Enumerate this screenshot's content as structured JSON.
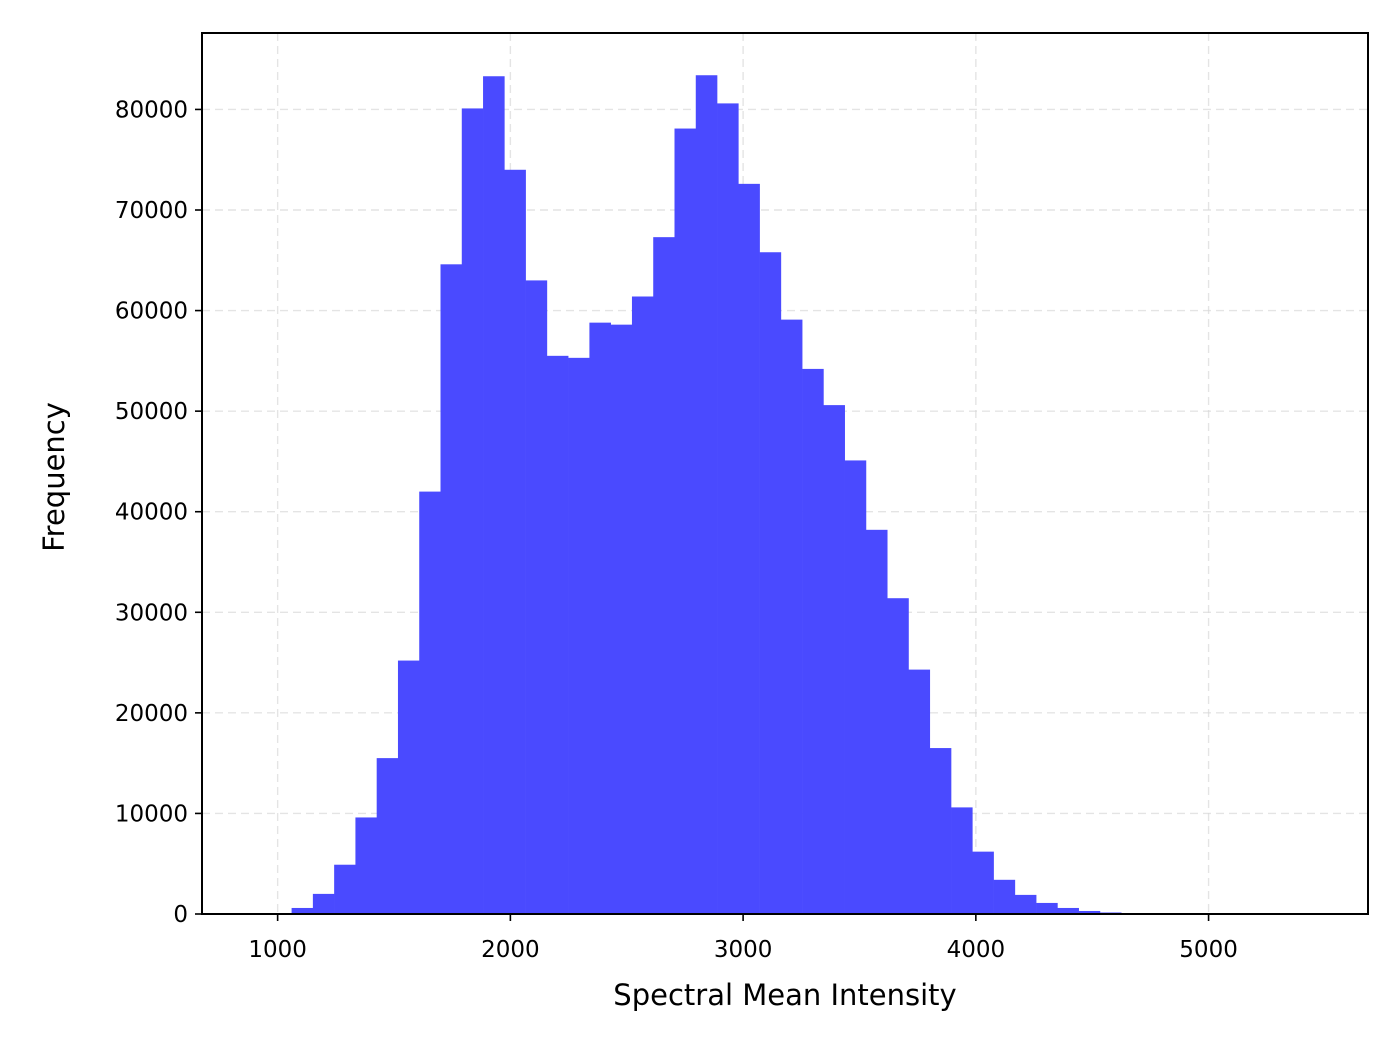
{
  "chart_data": {
    "type": "bar",
    "subtype": "histogram",
    "title": "",
    "xlabel": "Spectral Mean Intensity",
    "ylabel": "Frequency",
    "xlim": [
      675,
      5685
    ],
    "ylim": [
      0,
      87600
    ],
    "xticks": [
      1000,
      2000,
      3000,
      4000,
      5000
    ],
    "yticks": [
      0,
      10000,
      20000,
      30000,
      40000,
      50000,
      60000,
      70000,
      80000
    ],
    "grid": true,
    "legend": "none",
    "bar_color": "#4a4aff",
    "bin_start": 1060,
    "bin_width": 91.4,
    "values": [
      600,
      2000,
      4900,
      9600,
      15500,
      25200,
      42000,
      64600,
      80100,
      83300,
      74000,
      63000,
      55500,
      55300,
      58800,
      58600,
      61400,
      67300,
      78100,
      83400,
      80600,
      72600,
      65800,
      59100,
      54200,
      50600,
      45100,
      38200,
      31400,
      24300,
      16500,
      10600,
      6200,
      3400,
      1900,
      1100,
      600,
      300,
      150,
      60,
      30,
      10,
      5,
      2,
      1
    ]
  }
}
